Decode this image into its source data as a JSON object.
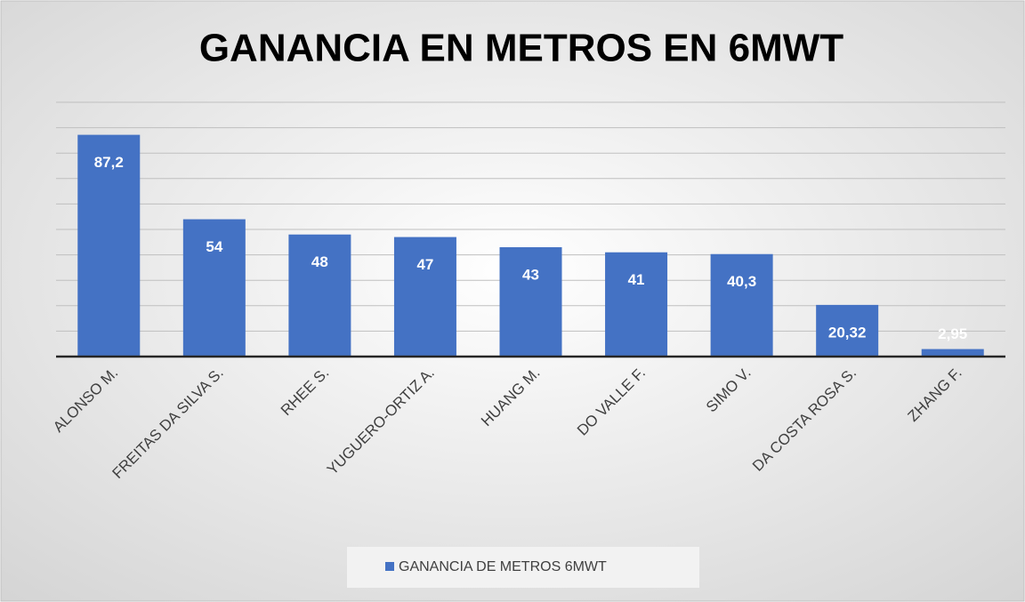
{
  "chart_data": {
    "type": "bar",
    "title": "GANANCIA EN METROS EN 6MWT",
    "categories": [
      "ALONSO M.",
      "FREITAS DA SILVA S.",
      "RHEE S.",
      "YUGUERO-ORTIZ A.",
      "HUANG M.",
      "DO VALLE F.",
      "SIMO V.",
      "DA COSTA ROSA S.",
      "ZHANG F."
    ],
    "series": [
      {
        "name": "GANANCIA DE METROS 6MWT",
        "color": "#4472c4",
        "values": [
          87.2,
          54,
          48,
          47,
          43,
          41,
          40.3,
          20.32,
          2.95
        ],
        "value_labels": [
          "87,2",
          "54",
          "48",
          "47",
          "43",
          "41",
          "40,3",
          "20,32",
          "2,95"
        ]
      }
    ],
    "ylim": [
      0,
      100
    ],
    "yticks": [
      0,
      10,
      20,
      30,
      40,
      50,
      60,
      70,
      80,
      90,
      100
    ],
    "grid": true,
    "legend": "bottom"
  }
}
